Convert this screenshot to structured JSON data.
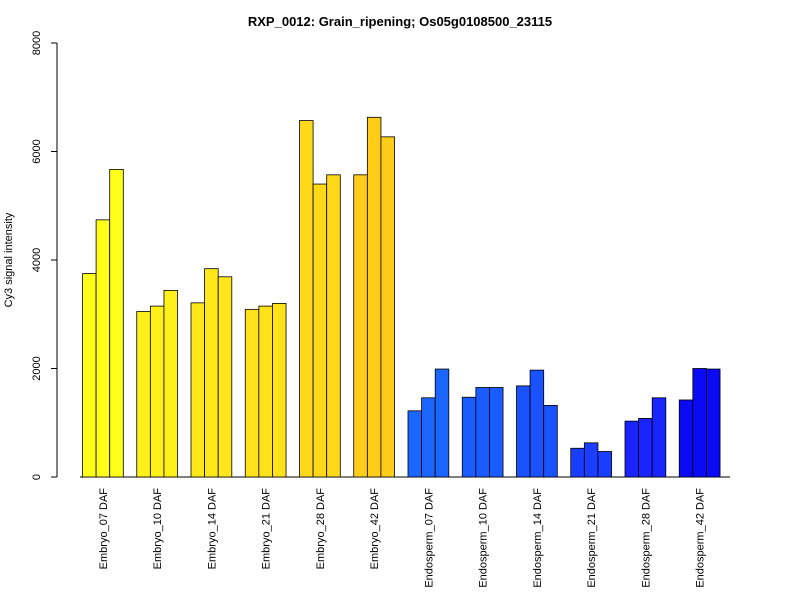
{
  "chart_data": {
    "type": "bar",
    "title": "RXP_0012: Grain_ripening; Os05g0108500_23115",
    "xlabel": "",
    "ylabel": "Cy3 signal intensity",
    "ylim": [
      0,
      8000
    ],
    "yticks": [
      0,
      2000,
      4000,
      6000,
      8000
    ],
    "grid": false,
    "legend": "none",
    "bars_per_group": 3,
    "groups": [
      {
        "label": "Embryo_07 DAF",
        "values": [
          3750,
          4740,
          5670
        ],
        "color": "#FFFF1A"
      },
      {
        "label": "Embryo_10 DAF",
        "values": [
          3050,
          3150,
          3440
        ],
        "color": "#FFF01A"
      },
      {
        "label": "Embryo_14 DAF",
        "values": [
          3210,
          3840,
          3690
        ],
        "color": "#FFE81A"
      },
      {
        "label": "Embryo_21 DAF",
        "values": [
          3090,
          3150,
          3200
        ],
        "color": "#FFE21A"
      },
      {
        "label": "Embryo_28 DAF",
        "values": [
          6570,
          5400,
          5570
        ],
        "color": "#FFD81A"
      },
      {
        "label": "Embryo_42 DAF",
        "values": [
          5570,
          6630,
          6270
        ],
        "color": "#FFCC1A"
      },
      {
        "label": "Endosperm_07 DAF",
        "values": [
          1220,
          1460,
          1990
        ],
        "color": "#1A66FF"
      },
      {
        "label": "Endosperm_10 DAF",
        "values": [
          1470,
          1650,
          1650
        ],
        "color": "#1A5CFF"
      },
      {
        "label": "Endosperm_14 DAF",
        "values": [
          1680,
          1970,
          1320
        ],
        "color": "#1A52FF"
      },
      {
        "label": "Endosperm_21 DAF",
        "values": [
          530,
          630,
          470
        ],
        "color": "#1A3DFF"
      },
      {
        "label": "Endosperm_28 DAF",
        "values": [
          1030,
          1080,
          1460
        ],
        "color": "#1A24FF"
      },
      {
        "label": "Endosperm_42 DAF",
        "values": [
          1420,
          2000,
          1990
        ],
        "color": "#0A0AF5"
      }
    ]
  }
}
